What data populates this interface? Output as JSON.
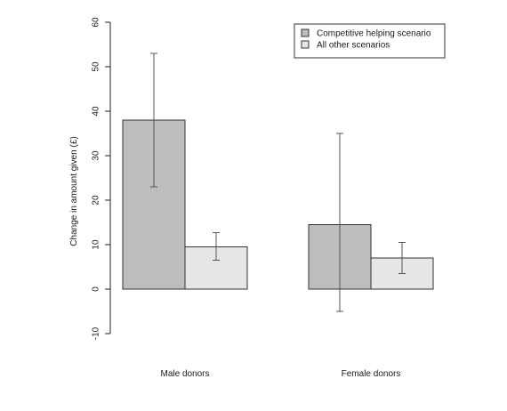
{
  "chart_data": {
    "type": "bar",
    "categories": [
      "Male donors",
      "Female donors"
    ],
    "series": [
      {
        "name": "Competitive helping scenario",
        "color": "#bdbdbd",
        "values": [
          38,
          14.5
        ],
        "err_low": [
          23,
          -5
        ],
        "err_high": [
          53,
          35
        ]
      },
      {
        "name": "All other scenarios",
        "color": "#e6e6e6",
        "values": [
          9.5,
          7
        ],
        "err_low": [
          6.5,
          3.5
        ],
        "err_high": [
          12.7,
          10.5
        ]
      }
    ],
    "title": "",
    "xlabel": "",
    "ylabel": "Change in amount given (£)",
    "ylim": [
      -10,
      60
    ],
    "yticks": [
      -10,
      0,
      10,
      20,
      30,
      40,
      50,
      60
    ],
    "grid": false,
    "legend_position": "top-right"
  }
}
